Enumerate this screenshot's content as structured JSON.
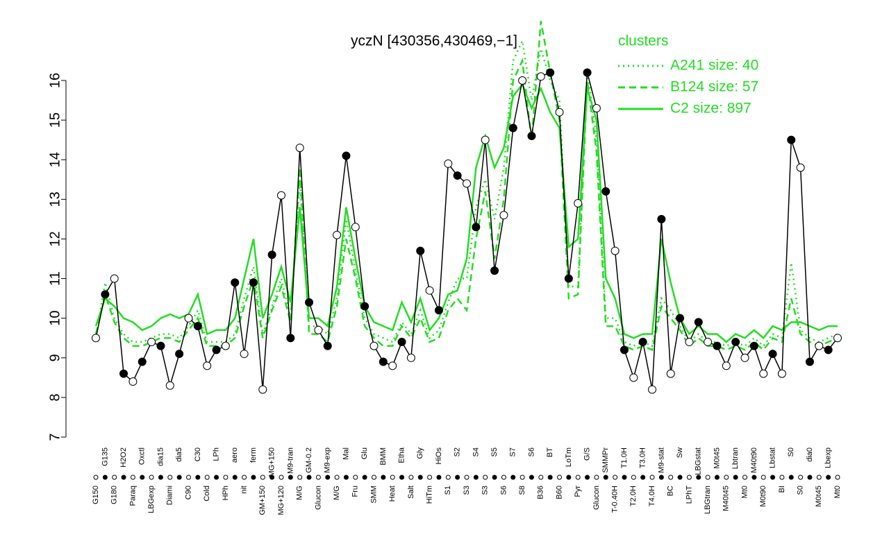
{
  "chart_data": {
    "type": "line",
    "title": "yczN [430356,430469,−1]",
    "legend_title": "clusters",
    "ylim": [
      7,
      16
    ],
    "yticks": [
      7,
      8,
      9,
      10,
      11,
      12,
      13,
      14,
      15,
      16
    ],
    "categories": [
      "G150",
      "G135",
      "G180",
      "H2O2",
      "Paraq",
      "Oxctl",
      "LBGexp",
      "dia15",
      "Diami",
      "dia5",
      "C90",
      "C30",
      "Cold",
      "LPh",
      "HPh",
      "aero",
      "nit",
      "ferm",
      "GM+150",
      "MG+150",
      "MG+120",
      "M9-tran",
      "M/G",
      "GM-0.2",
      "Glucon",
      "M9-exp",
      "M/G",
      "Mal",
      "Fru",
      "Glu",
      "SMM",
      "BMM",
      "Heat",
      "Etha",
      "Salt",
      "Gly",
      "HiTm",
      "HiOs",
      "S1",
      "S2",
      "S3",
      "S4",
      "S3",
      "S5",
      "S6",
      "S7",
      "S8",
      "S6",
      "B36",
      "BT",
      "B60",
      "LoTm",
      "Pyr",
      "G/S",
      "Glucon",
      "SMMPr",
      "T-0.40H",
      "T1.0H",
      "T2.0H",
      "T3.0H",
      "T4.0H",
      "M9-stat",
      "BC",
      "Sw",
      "LPhT",
      "LBGstat",
      "LBGtran",
      "M0t45",
      "M40t45",
      "Lbtran",
      "Mt0",
      "M40t90",
      "M0t90",
      "Lbstat",
      "BI",
      "S0",
      "S0",
      "dia0",
      "M0t45",
      "Lbexp",
      "Mt0"
    ],
    "values": [
      9.5,
      10.6,
      11.0,
      8.6,
      8.4,
      8.9,
      9.4,
      9.3,
      8.3,
      9.1,
      10.0,
      9.8,
      8.8,
      9.2,
      9.3,
      10.9,
      9.1,
      10.9,
      8.2,
      11.6,
      13.1,
      9.5,
      14.3,
      10.4,
      9.7,
      9.3,
      12.1,
      14.1,
      12.3,
      10.3,
      9.3,
      8.9,
      8.8,
      9.4,
      9.0,
      11.7,
      10.7,
      10.2,
      13.9,
      13.6,
      13.4,
      12.3,
      14.5,
      11.2,
      12.6,
      14.8,
      16.0,
      14.6,
      16.1,
      16.2,
      15.2,
      11.0,
      12.9,
      16.2,
      15.3,
      13.2,
      11.7,
      9.2,
      8.5,
      9.4,
      8.2,
      12.5,
      8.6,
      10.0,
      9.4,
      9.9,
      9.4,
      9.3,
      8.8,
      9.4,
      9.0,
      9.3,
      8.6,
      9.1,
      8.6,
      14.5,
      13.8,
      8.9,
      9.3,
      9.2,
      9.5
    ],
    "color": "#000000",
    "series": [
      {
        "name": "A241 size: 40",
        "color": "#22dd22",
        "style": "dotted",
        "values": [
          9.5,
          10.9,
          10.0,
          9.6,
          9.4,
          9.4,
          9.5,
          9.6,
          9.6,
          9.5,
          9.8,
          10.2,
          9.4,
          9.4,
          9.4,
          9.6,
          10.5,
          11.3,
          9.6,
          10.3,
          11.0,
          10.0,
          13.5,
          9.8,
          9.8,
          9.6,
          10.5,
          12.5,
          11.2,
          10.0,
          9.6,
          9.5,
          9.4,
          9.9,
          9.6,
          10.2,
          9.5,
          9.7,
          10.4,
          11.0,
          11.0,
          12.8,
          13.5,
          12.5,
          13.8,
          16.5,
          17.0,
          15.5,
          16.8,
          16.0,
          15.5,
          10.8,
          10.8,
          16.3,
          14.5,
          10.0,
          10.0,
          9.4,
          9.3,
          9.4,
          9.3,
          10.5,
          10.2,
          9.8,
          9.4,
          9.6,
          9.4,
          9.4,
          9.3,
          9.4,
          9.3,
          9.5,
          9.3,
          9.6,
          9.5,
          11.4,
          9.7,
          9.5,
          9.4,
          9.5,
          9.6
        ]
      },
      {
        "name": "B124 size: 57",
        "color": "#22dd22",
        "style": "dashed",
        "values": [
          9.6,
          10.6,
          9.9,
          9.5,
          9.3,
          9.3,
          9.4,
          9.5,
          9.5,
          9.4,
          9.7,
          10.0,
          9.3,
          9.3,
          9.3,
          9.5,
          10.3,
          11.0,
          9.5,
          10.2,
          10.8,
          9.9,
          13.8,
          9.6,
          9.6,
          9.4,
          10.3,
          12.0,
          11.0,
          9.8,
          9.5,
          9.3,
          9.3,
          9.8,
          9.5,
          10.0,
          9.4,
          9.5,
          10.2,
          10.5,
          10.2,
          12.0,
          13.2,
          11.5,
          13.0,
          16.0,
          16.5,
          14.5,
          17.5,
          16.2,
          15.0,
          10.5,
          10.6,
          16.0,
          14.2,
          9.8,
          9.8,
          9.3,
          9.2,
          9.3,
          9.2,
          10.3,
          10.0,
          9.7,
          9.3,
          9.5,
          9.3,
          9.3,
          9.2,
          9.3,
          9.2,
          9.4,
          9.2,
          9.5,
          9.4,
          10.5,
          9.6,
          9.4,
          9.3,
          9.4,
          9.5
        ]
      },
      {
        "name": "C2 size: 897",
        "color": "#22dd22",
        "style": "solid",
        "values": [
          9.8,
          10.5,
          10.3,
          10.0,
          9.9,
          9.7,
          9.8,
          10.0,
          10.1,
          10.0,
          10.1,
          10.6,
          9.6,
          9.7,
          9.7,
          10.0,
          11.0,
          12.0,
          10.0,
          10.6,
          11.3,
          10.4,
          12.8,
          10.0,
          10.0,
          9.8,
          10.8,
          12.8,
          11.5,
          10.3,
          9.9,
          9.8,
          9.7,
          10.4,
          9.9,
          10.5,
          9.7,
          10.0,
          10.6,
          10.7,
          11.5,
          13.8,
          14.6,
          13.8,
          14.3,
          15.6,
          15.9,
          15.3,
          15.8,
          15.2,
          14.8,
          11.8,
          12.0,
          15.8,
          15.0,
          11.0,
          10.5,
          9.6,
          9.5,
          9.6,
          9.6,
          12.0,
          10.9,
          10.0,
          9.6,
          9.8,
          9.6,
          9.6,
          9.4,
          9.6,
          9.5,
          9.7,
          9.5,
          9.8,
          9.7,
          9.9,
          9.9,
          9.8,
          9.7,
          9.8,
          9.8
        ]
      }
    ]
  }
}
